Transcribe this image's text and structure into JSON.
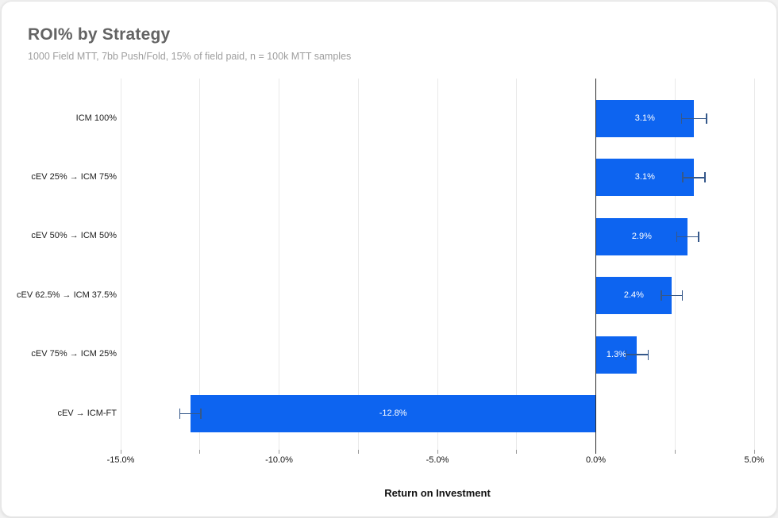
{
  "chart_data": {
    "type": "bar",
    "orientation": "horizontal",
    "title": "ROI% by Strategy",
    "subtitle": "1000 Field MTT, 7bb Push/Fold, 15% of field paid, n = 100k MTT samples",
    "categories": [
      "ICM 100%",
      "cEV 25% → ICM 75%",
      "cEV 50% → ICM 50%",
      "cEV 62.5% → ICM 37.5%",
      "cEV 75% → ICM 25%",
      "cEV → ICM-FT"
    ],
    "values": [
      3.1,
      3.1,
      2.9,
      2.4,
      1.3,
      -12.8
    ],
    "errors": [
      0.39,
      0.35,
      0.34,
      0.33,
      0.35,
      0.33
    ],
    "bar_labels": [
      "3.1%",
      "3.1%",
      "2.9%",
      "2.4%",
      "1.3%",
      "-12.8%"
    ],
    "xlabel": "Return on Investment",
    "xlim": [
      -15,
      5
    ],
    "x_major_ticks": [
      {
        "value": -15,
        "label": "-15.0%"
      },
      {
        "value": -10,
        "label": "-10.0%"
      },
      {
        "value": -5,
        "label": "-5.0%"
      },
      {
        "value": 0,
        "label": "0.0%"
      },
      {
        "value": 5,
        "label": "5.0%"
      }
    ],
    "x_minor_tick_step": 2.5,
    "grid": true,
    "legend": "none",
    "colors": {
      "bar": "#0d64f0",
      "bar_label": "#ffffff",
      "error_bar": "#35588a",
      "grid": "#e9e9e9",
      "zero_line": "#2b2b2b",
      "title": "#636363",
      "subtitle": "#9e9e9e"
    }
  }
}
